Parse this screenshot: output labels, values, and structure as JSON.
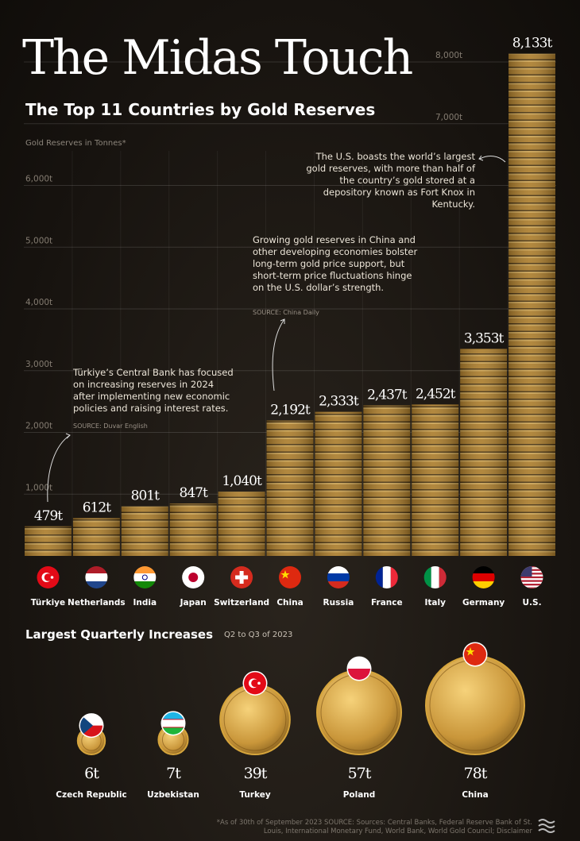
{
  "chart_data": [
    {
      "type": "bar",
      "title": "The Midas Touch",
      "subtitle": "The Top 11 Countries by Gold Reserves",
      "axis_label": "Gold Reserves in Tonnes*",
      "categories": [
        "Türkiye",
        "Netherlands",
        "India",
        "Japan",
        "Switzerland",
        "China",
        "Russia",
        "France",
        "Italy",
        "Germany",
        "U.S."
      ],
      "values": [
        479,
        612,
        801,
        847,
        1040,
        2192,
        2333,
        2437,
        2452,
        3353,
        8133
      ],
      "value_labels": [
        "479t",
        "612t",
        "801t",
        "847t",
        "1,040t",
        "2,192t",
        "2,333t",
        "2,437t",
        "2,452t",
        "3,353t",
        "8,133t"
      ],
      "color": "#a87a2c",
      "ylim": [
        0,
        8200
      ],
      "yticks": [
        {
          "value": 1000,
          "label": "1,000t"
        },
        {
          "value": 2000,
          "label": "2,000t"
        },
        {
          "value": 3000,
          "label": "3,000t"
        },
        {
          "value": 4000,
          "label": "4,000t"
        },
        {
          "value": 5000,
          "label": "5,000t"
        },
        {
          "value": 6000,
          "label": "6,000t"
        },
        {
          "value": 7000,
          "label": "7,000t"
        },
        {
          "value": 8000,
          "label": "8,000t"
        }
      ],
      "grid": true,
      "annotations": [
        {
          "text": "Türkiye’s Central Bank has focused on increasing reserves in 2024 after implementing new economic policies and raising interest rates.",
          "source": "SOURCE: Duvar English"
        },
        {
          "text": "Growing gold reserves in China and other developing economies bolster long-term gold price support, but short-term price fluctuations hinge on the U.S. dollar’s strength.",
          "source": "SOURCE: China Daily"
        },
        {
          "text": "The U.S. boasts the world’s largest gold reserves, with more than half of the country’s gold stored at a depository known as Fort Knox in Kentucky."
        }
      ]
    },
    {
      "type": "bubble",
      "title": "Largest Quarterly Increases",
      "subtitle": "Q2 to Q3 of 2023",
      "categories": [
        "Czech Republic",
        "Uzbekistan",
        "Turkey",
        "Poland",
        "China"
      ],
      "values": [
        6,
        7,
        39,
        57,
        78
      ],
      "value_labels": [
        "6t",
        "7t",
        "39t",
        "57t",
        "78t"
      ],
      "color": "#d6a53c"
    }
  ],
  "footnote": "*As of 30th of September 2023 SOURCE: Sources: Central Banks, Federal Reserve Bank of St. Louis, International Monetary Fund, World Bank, World Gold Council; Disclaimer"
}
